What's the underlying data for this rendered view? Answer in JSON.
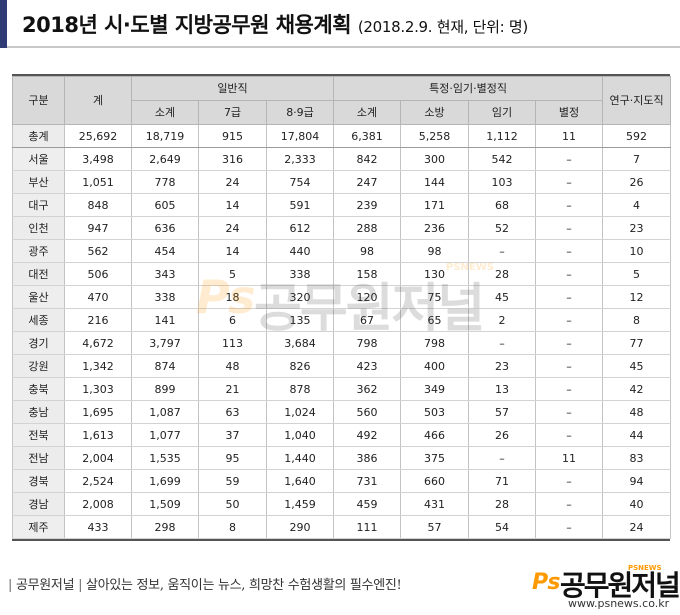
{
  "title": {
    "main": "2018년 시·도별 지방공무원 채용계획",
    "sub": "(2018.2.9. 현재, 단위: 명)"
  },
  "table": {
    "headers": {
      "region": "구분",
      "total": "계",
      "general": "일반직",
      "general_sub": [
        "소계",
        "7급",
        "8·9급"
      ],
      "special": "특정·임기·별정직",
      "special_sub": [
        "소계",
        "소방",
        "임기",
        "별정"
      ],
      "research": "연구·지도직"
    },
    "rows": [
      {
        "region": "총계",
        "cells": [
          "25,692",
          "18,719",
          "915",
          "17,804",
          "6,381",
          "5,258",
          "1,112",
          "11",
          "592"
        ]
      },
      {
        "region": "서울",
        "cells": [
          "3,498",
          "2,649",
          "316",
          "2,333",
          "842",
          "300",
          "542",
          "–",
          "7"
        ]
      },
      {
        "region": "부산",
        "cells": [
          "1,051",
          "778",
          "24",
          "754",
          "247",
          "144",
          "103",
          "–",
          "26"
        ]
      },
      {
        "region": "대구",
        "cells": [
          "848",
          "605",
          "14",
          "591",
          "239",
          "171",
          "68",
          "–",
          "4"
        ]
      },
      {
        "region": "인천",
        "cells": [
          "947",
          "636",
          "24",
          "612",
          "288",
          "236",
          "52",
          "–",
          "23"
        ]
      },
      {
        "region": "광주",
        "cells": [
          "562",
          "454",
          "14",
          "440",
          "98",
          "98",
          "–",
          "–",
          "10"
        ]
      },
      {
        "region": "대전",
        "cells": [
          "506",
          "343",
          "5",
          "338",
          "158",
          "130",
          "28",
          "–",
          "5"
        ]
      },
      {
        "region": "울산",
        "cells": [
          "470",
          "338",
          "18",
          "320",
          "120",
          "75",
          "45",
          "–",
          "12"
        ]
      },
      {
        "region": "세종",
        "cells": [
          "216",
          "141",
          "6",
          "135",
          "67",
          "65",
          "2",
          "–",
          "8"
        ]
      },
      {
        "region": "경기",
        "cells": [
          "4,672",
          "3,797",
          "113",
          "3,684",
          "798",
          "798",
          "–",
          "–",
          "77"
        ]
      },
      {
        "region": "강원",
        "cells": [
          "1,342",
          "874",
          "48",
          "826",
          "423",
          "400",
          "23",
          "–",
          "45"
        ]
      },
      {
        "region": "충북",
        "cells": [
          "1,303",
          "899",
          "21",
          "878",
          "362",
          "349",
          "13",
          "–",
          "42"
        ]
      },
      {
        "region": "충남",
        "cells": [
          "1,695",
          "1,087",
          "63",
          "1,024",
          "560",
          "503",
          "57",
          "–",
          "48"
        ]
      },
      {
        "region": "전북",
        "cells": [
          "1,613",
          "1,077",
          "37",
          "1,040",
          "492",
          "466",
          "26",
          "–",
          "44"
        ]
      },
      {
        "region": "전남",
        "cells": [
          "2,004",
          "1,535",
          "95",
          "1,440",
          "386",
          "375",
          "–",
          "11",
          "83"
        ]
      },
      {
        "region": "경북",
        "cells": [
          "2,524",
          "1,699",
          "59",
          "1,640",
          "731",
          "660",
          "71",
          "–",
          "94"
        ]
      },
      {
        "region": "경남",
        "cells": [
          "2,008",
          "1,509",
          "50",
          "1,459",
          "459",
          "431",
          "28",
          "–",
          "40"
        ]
      },
      {
        "region": "제주",
        "cells": [
          "433",
          "298",
          "8",
          "290",
          "111",
          "57",
          "54",
          "–",
          "24"
        ]
      }
    ]
  },
  "watermark": {
    "ps": "Ps",
    "name": "공무원저널",
    "tag": "PSNEWS"
  },
  "footer": {
    "brand": "공무원저널",
    "slogan": "살아있는 정보, 움직이는 뉴스, 희망찬 수험생활의 필수엔진!",
    "logo_ps": "Ps",
    "logo_name": "공무원저널",
    "logo_tag": "PSNEWS",
    "url": "www.psnews.co.kr"
  },
  "colors": {
    "accent": "#303a74",
    "header_bg": "#d9d9d9",
    "brand_orange": "#ff9900"
  }
}
